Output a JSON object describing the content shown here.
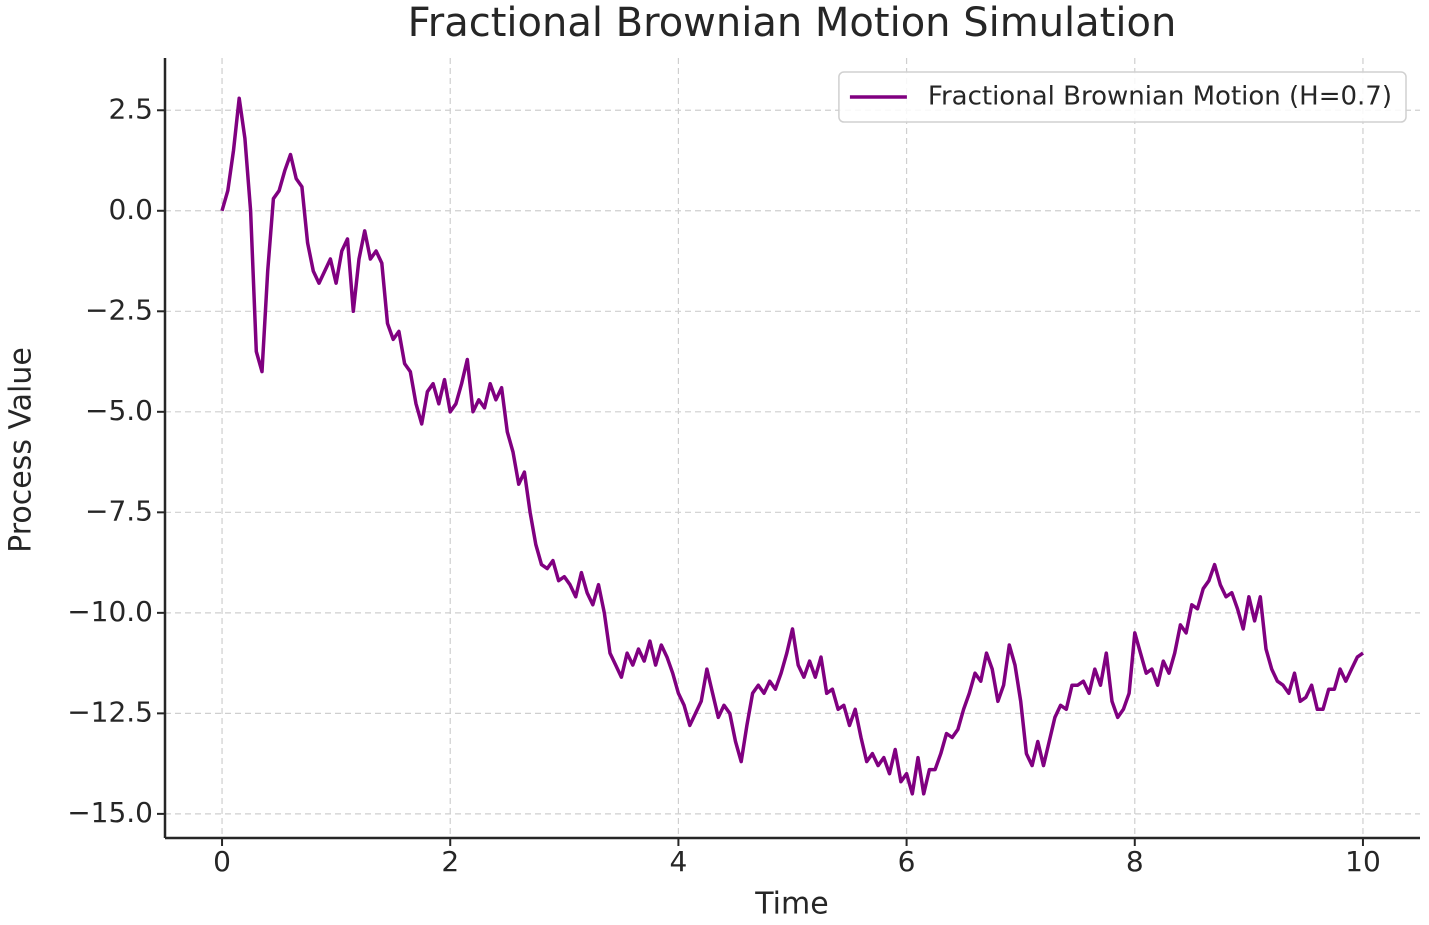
{
  "chart_data": {
    "type": "line",
    "title": "Fractional Brownian Motion Simulation",
    "xlabel": "Time",
    "ylabel": "Process Value",
    "x": [
      0,
      0.05,
      0.1,
      0.15,
      0.2,
      0.25,
      0.3,
      0.35,
      0.4,
      0.45,
      0.5,
      0.55,
      0.6,
      0.65,
      0.7,
      0.75,
      0.8,
      0.85,
      0.9,
      0.95,
      1.0,
      1.05,
      1.1,
      1.15,
      1.2,
      1.25,
      1.3,
      1.35,
      1.4,
      1.45,
      1.5,
      1.55,
      1.6,
      1.65,
      1.7,
      1.75,
      1.8,
      1.85,
      1.9,
      1.95,
      2.0,
      2.05,
      2.1,
      2.15,
      2.2,
      2.25,
      2.3,
      2.35,
      2.4,
      2.45,
      2.5,
      2.55,
      2.6,
      2.65,
      2.7,
      2.75,
      2.8,
      2.85,
      2.9,
      2.95,
      3.0,
      3.05,
      3.1,
      3.15,
      3.2,
      3.25,
      3.3,
      3.35,
      3.4,
      3.45,
      3.5,
      3.55,
      3.6,
      3.65,
      3.7,
      3.75,
      3.8,
      3.85,
      3.9,
      3.95,
      4.0,
      4.05,
      4.1,
      4.15,
      4.2,
      4.25,
      4.3,
      4.35,
      4.4,
      4.45,
      4.5,
      4.55,
      4.6,
      4.65,
      4.7,
      4.75,
      4.8,
      4.85,
      4.9,
      4.95,
      5.0,
      5.05,
      5.1,
      5.15,
      5.2,
      5.25,
      5.3,
      5.35,
      5.4,
      5.45,
      5.5,
      5.55,
      5.6,
      5.65,
      5.7,
      5.75,
      5.8,
      5.85,
      5.9,
      5.95,
      6.0,
      6.05,
      6.1,
      6.15,
      6.2,
      6.25,
      6.3,
      6.35,
      6.4,
      6.45,
      6.5,
      6.55,
      6.6,
      6.65,
      6.7,
      6.75,
      6.8,
      6.85,
      6.9,
      6.95,
      7.0,
      7.05,
      7.1,
      7.15,
      7.2,
      7.25,
      7.3,
      7.35,
      7.4,
      7.45,
      7.5,
      7.55,
      7.6,
      7.65,
      7.7,
      7.75,
      7.8,
      7.85,
      7.9,
      7.95,
      8.0,
      8.05,
      8.1,
      8.15,
      8.2,
      8.25,
      8.3,
      8.35,
      8.4,
      8.45,
      8.5,
      8.55,
      8.6,
      8.65,
      8.7,
      8.75,
      8.8,
      8.85,
      8.9,
      8.95,
      9.0,
      9.05,
      9.1,
      9.15,
      9.2,
      9.25,
      9.3,
      9.35,
      9.4,
      9.45,
      9.5,
      9.55,
      9.6,
      9.65,
      9.7,
      9.75,
      9.8,
      9.85,
      9.9,
      9.95,
      10.0
    ],
    "series": [
      {
        "name": "Fractional Brownian Motion (H=0.7)",
        "color": "#800080",
        "values": [
          0,
          0.5,
          1.5,
          2.8,
          1.8,
          0.0,
          -3.5,
          -4.0,
          -1.5,
          0.3,
          0.5,
          1.0,
          1.4,
          0.8,
          0.6,
          -0.8,
          -1.5,
          -1.8,
          -1.5,
          -1.2,
          -1.8,
          -1.0,
          -0.7,
          -2.5,
          -1.2,
          -0.5,
          -1.2,
          -1.0,
          -1.3,
          -2.8,
          -3.2,
          -3.0,
          -3.8,
          -4.0,
          -4.8,
          -5.3,
          -4.5,
          -4.3,
          -4.8,
          -4.2,
          -5.0,
          -4.8,
          -4.3,
          -3.7,
          -5.0,
          -4.7,
          -4.9,
          -4.3,
          -4.7,
          -4.4,
          -5.5,
          -6.0,
          -6.8,
          -6.5,
          -7.5,
          -8.3,
          -8.8,
          -8.9,
          -8.7,
          -9.2,
          -9.1,
          -9.3,
          -9.6,
          -9.0,
          -9.5,
          -9.8,
          -9.3,
          -10.0,
          -11.0,
          -11.3,
          -11.6,
          -11.0,
          -11.3,
          -10.9,
          -11.2,
          -10.7,
          -11.3,
          -10.8,
          -11.1,
          -11.5,
          -12.0,
          -12.3,
          -12.8,
          -12.5,
          -12.2,
          -11.4,
          -12.0,
          -12.6,
          -12.3,
          -12.5,
          -13.2,
          -13.7,
          -12.8,
          -12.0,
          -11.8,
          -12.0,
          -11.7,
          -11.9,
          -11.5,
          -11.0,
          -10.4,
          -11.3,
          -11.6,
          -11.2,
          -11.6,
          -11.1,
          -12.0,
          -11.9,
          -12.4,
          -12.3,
          -12.8,
          -12.4,
          -13.1,
          -13.7,
          -13.5,
          -13.8,
          -13.6,
          -14.0,
          -13.4,
          -14.2,
          -14.0,
          -14.5,
          -13.6,
          -14.5,
          -13.9,
          -13.9,
          -13.5,
          -13.0,
          -13.1,
          -12.9,
          -12.4,
          -12.0,
          -11.5,
          -11.7,
          -11.0,
          -11.4,
          -12.2,
          -11.8,
          -10.8,
          -11.3,
          -12.2,
          -13.5,
          -13.8,
          -13.2,
          -13.8,
          -13.2,
          -12.6,
          -12.3,
          -12.4,
          -11.8,
          -11.8,
          -11.7,
          -12.0,
          -11.4,
          -11.8,
          -11.0,
          -12.2,
          -12.6,
          -12.4,
          -12.0,
          -10.5,
          -11.0,
          -11.5,
          -11.4,
          -11.8,
          -11.2,
          -11.5,
          -11.0,
          -10.3,
          -10.5,
          -9.8,
          -9.9,
          -9.4,
          -9.2,
          -8.8,
          -9.3,
          -9.6,
          -9.5,
          -9.9,
          -10.4,
          -9.6,
          -10.2,
          -9.6,
          -10.9,
          -11.4,
          -11.7,
          -11.8,
          -12.0,
          -11.5,
          -12.2,
          -12.1,
          -11.8,
          -12.4,
          -12.4,
          -11.9,
          -11.9,
          -11.4,
          -11.7,
          -11.4,
          -11.1,
          -11.0
        ]
      }
    ],
    "xlim": [
      -0.5,
      10.5
    ],
    "ylim": [
      -15.6,
      3.8
    ],
    "xticks": [
      0,
      2,
      4,
      6,
      8,
      10
    ],
    "yticks": [
      2.5,
      {
        "value": 0,
        "label": "0.0"
      },
      {
        "value": -2.5,
        "label": "−2.5"
      },
      {
        "value": -5,
        "label": "−5.0"
      },
      {
        "value": -7.5,
        "label": "−7.5"
      },
      {
        "value": -10,
        "label": "−10.0"
      },
      {
        "value": -12.5,
        "label": "−12.5"
      },
      {
        "value": -15,
        "label": "−15.0"
      }
    ],
    "grid": true,
    "legend": "upper right"
  }
}
